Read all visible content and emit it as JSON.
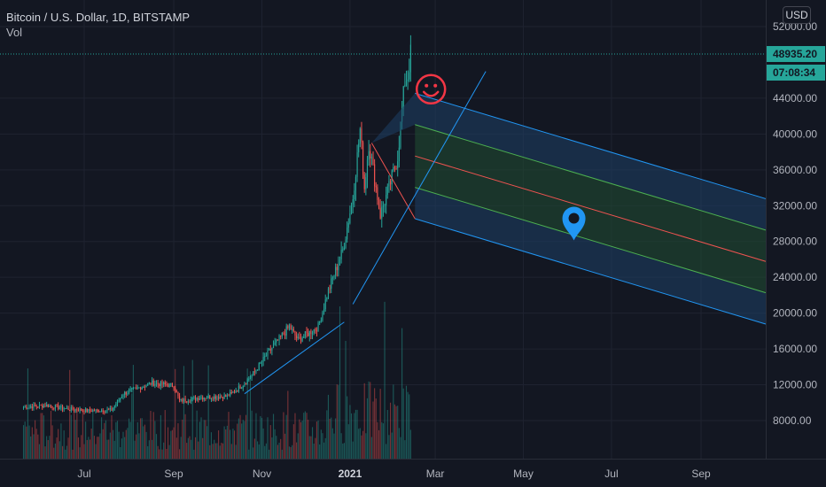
{
  "symbol_title": "Bitcoin / U.S. Dollar, 1D, BITSTAMP",
  "volume_label": "Vol",
  "currency_button": "USD",
  "last_price_label": "48935.20",
  "countdown_label": "07:08:34",
  "colors": {
    "background": "#131722",
    "up": "#26a69a",
    "down": "#ef5350",
    "trendline": "#2196f3",
    "fork_upper_fill": "#1e3f66",
    "fork_mid_fill": "#1f4a32",
    "fork_median": "#ef5350",
    "fork_inner": "#4caf50",
    "fork_outer": "#2196f3",
    "emoji": "#f23645",
    "pin": "#2196f3"
  },
  "icons": [
    "smiley-face-icon",
    "location-pin-icon"
  ],
  "chart_data": {
    "type": "candlestick",
    "title": "Bitcoin / U.S. Dollar, 1D, BITSTAMP",
    "last_price": 48935.2,
    "ylim": [
      4000,
      54000
    ],
    "y_ticks": [
      8000,
      12000,
      16000,
      20000,
      24000,
      28000,
      32000,
      36000,
      40000,
      44000,
      52000
    ],
    "y_tick_labels": [
      "8000.00",
      "12000.00",
      "16000.00",
      "20000.00",
      "24000.00",
      "28000.00",
      "32000.00",
      "36000.00",
      "40000.00",
      "44000.00",
      "52000.00"
    ],
    "x_ticks": [
      "Jul",
      "Sep",
      "Nov",
      "2021",
      "Mar",
      "May",
      "Jul",
      "Sep"
    ],
    "grid": true,
    "price_path": [
      [
        "2020-05-20",
        9500
      ],
      [
        "2020-06-05",
        9700
      ],
      [
        "2020-06-20",
        9300
      ],
      [
        "2020-07-05",
        9100
      ],
      [
        "2020-07-20",
        9200
      ],
      [
        "2020-07-28",
        11000
      ],
      [
        "2020-08-10",
        11800
      ],
      [
        "2020-08-17",
        12200
      ],
      [
        "2020-09-01",
        11900
      ],
      [
        "2020-09-05",
        10200
      ],
      [
        "2020-09-20",
        10600
      ],
      [
        "2020-10-08",
        10700
      ],
      [
        "2020-10-15",
        11500
      ],
      [
        "2020-10-25",
        13000
      ],
      [
        "2020-11-05",
        15500
      ],
      [
        "2020-11-20",
        18500
      ],
      [
        "2020-11-26",
        17000
      ],
      [
        "2020-12-10",
        18500
      ],
      [
        "2020-12-17",
        22500
      ],
      [
        "2020-12-27",
        27000
      ],
      [
        "2021-01-03",
        33000
      ],
      [
        "2021-01-08",
        40500
      ],
      [
        "2021-01-11",
        34000
      ],
      [
        "2021-01-14",
        39000
      ],
      [
        "2021-01-22",
        31000
      ],
      [
        "2021-01-28",
        34000
      ],
      [
        "2021-02-03",
        37500
      ],
      [
        "2021-02-08",
        46000
      ],
      [
        "2021-02-10",
        46500
      ],
      [
        "2021-02-12",
        48935
      ]
    ],
    "annotations": [
      {
        "type": "trendline",
        "from": [
          "2020-10-20",
          11000
        ],
        "to": [
          "2020-12-28",
          19000
        ]
      },
      {
        "type": "trendline",
        "from": [
          "2021-01-03",
          21000
        ],
        "to": [
          "2021-04-05",
          47000
        ]
      },
      {
        "type": "pitchfork",
        "apex": [
          "2021-01-16",
          39000
        ],
        "median_end": [
          "2021-11-09",
          24600
        ],
        "inner_offset": 3500,
        "outer_offset": 7000
      },
      {
        "type": "emoji",
        "name": "smiley",
        "at": [
          "2021-02-26",
          45000
        ]
      },
      {
        "type": "marker",
        "name": "location-pin",
        "at": [
          "2021-06-05",
          30000
        ]
      }
    ]
  }
}
